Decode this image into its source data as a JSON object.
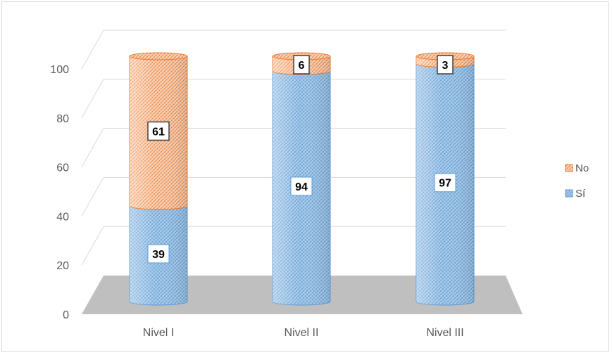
{
  "chart_data": {
    "type": "bar",
    "stacked": true,
    "three_d": true,
    "categories": [
      "Nivel I",
      "Nivel II",
      "Nivel III"
    ],
    "series": [
      {
        "name": "Sí",
        "values": [
          39,
          94,
          97
        ],
        "color": "#5b9bd5"
      },
      {
        "name": "No",
        "values": [
          61,
          6,
          3
        ],
        "color": "#ed7d31"
      }
    ],
    "ylim": [
      0,
      100
    ],
    "yticks": [
      0,
      20,
      40,
      60,
      80,
      100
    ],
    "grid": true,
    "legend": {
      "position": "right",
      "order": [
        "No",
        "Sí"
      ]
    },
    "floor_color": "#bfbfbf"
  }
}
